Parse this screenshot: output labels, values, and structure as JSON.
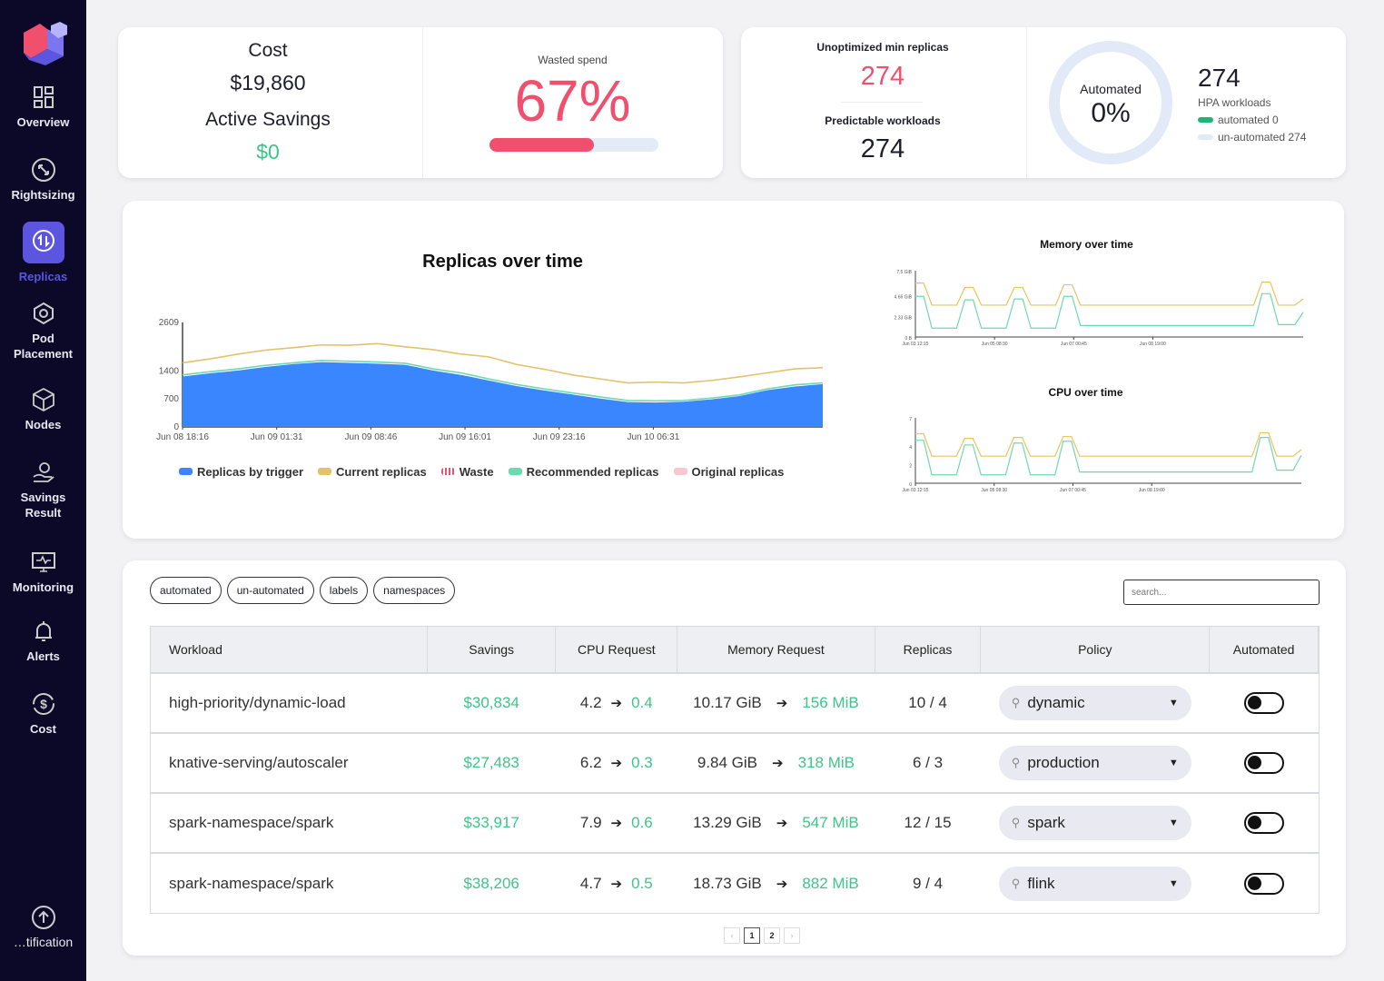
{
  "sidebar": {
    "items": [
      {
        "label": "Overview",
        "icon": "grid-icon"
      },
      {
        "label": "Rightsizing",
        "icon": "resize-icon"
      },
      {
        "label": "Replicas",
        "icon": "replicas-icon",
        "active": true
      },
      {
        "label": "Pod Placement",
        "icon": "pod-icon"
      },
      {
        "label": "Nodes",
        "icon": "cube-icon"
      },
      {
        "label": "Savings Result",
        "icon": "savings-icon"
      },
      {
        "label": "Monitoring",
        "icon": "monitor-icon"
      },
      {
        "label": "Alerts",
        "icon": "bell-icon"
      },
      {
        "label": "Cost",
        "icon": "dollar-icon"
      }
    ],
    "bottom": {
      "label": "…tification",
      "icon": "arrow-up-circle-icon"
    }
  },
  "summary": {
    "cost_label": "Cost",
    "cost_value": "$19,860",
    "savings_label": "Active Savings",
    "savings_value": "$0",
    "wasted_label": "Wasted spend",
    "wasted_value": "67%",
    "wasted_fraction": 0.67,
    "unopt_label": "Unoptimized min replicas",
    "unopt_value": "274",
    "predictable_label": "Predictable workloads",
    "predictable_value": "274",
    "automated_label": "Automated",
    "automated_value": "0%",
    "automated_fraction": 0,
    "hpa_value": "274",
    "hpa_label": "HPA workloads",
    "automated_legend": "automated 0",
    "unautomated_legend": "un-automated 274"
  },
  "colors": {
    "accent": "#5b55e0",
    "pink": "#f0506e",
    "green": "#3fc48a",
    "blue": "#3a86ff",
    "gold": "#e2c26a",
    "teal": "#6ed9b0"
  },
  "chart_data": [
    {
      "type": "area",
      "title": "Replicas over time",
      "ylim": [
        0,
        2609
      ],
      "yticks": [
        "0",
        "700",
        "1400",
        "2609"
      ],
      "ytick_values": [
        0,
        700,
        1400,
        2609
      ],
      "xticks": [
        "Jun 08 18:16",
        "Jun 09 01:31",
        "Jun 09 08:46",
        "Jun 09 16:01",
        "Jun 09 23:16",
        "Jun 10 06:31"
      ],
      "legend": [
        "Replicas by trigger",
        "Current replicas",
        "Waste",
        "Recommended replicas",
        "Original replicas"
      ],
      "series": [
        {
          "name": "Current replicas",
          "values": [
            1600,
            1700,
            1820,
            1920,
            1980,
            2050,
            2040,
            2080,
            2000,
            1930,
            1820,
            1750,
            1560,
            1440,
            1300,
            1200,
            1100,
            1120,
            1100,
            1160,
            1250,
            1350,
            1450,
            1480
          ]
        },
        {
          "name": "Recommended replicas",
          "values": [
            1300,
            1380,
            1450,
            1540,
            1600,
            1660,
            1640,
            1620,
            1590,
            1450,
            1350,
            1200,
            1060,
            950,
            850,
            750,
            660,
            650,
            660,
            720,
            800,
            950,
            1050,
            1100
          ]
        },
        {
          "name": "Replicas by trigger",
          "values": [
            1260,
            1340,
            1410,
            1500,
            1570,
            1620,
            1600,
            1580,
            1550,
            1410,
            1300,
            1160,
            1020,
            910,
            810,
            710,
            620,
            610,
            630,
            690,
            770,
            920,
            1010,
            1070
          ]
        }
      ]
    },
    {
      "type": "line",
      "title": "Memory over time",
      "ylim": [
        0,
        7.5
      ],
      "yticks": [
        "0 B",
        "2.33 GiB",
        "4.66 GiB",
        "7.5 GiB"
      ],
      "ytick_values": [
        0,
        2.33,
        4.66,
        7.5
      ],
      "xticks": [
        "Jun 03 12:15",
        "Jun 05 08:30",
        "Jun 07 00:45",
        "Jun 08 19:00"
      ],
      "series": [
        {
          "name": "current",
          "values": [
            6.1,
            6.1,
            3.6,
            3.6,
            3.6,
            3.6,
            5.6,
            5.6,
            3.6,
            3.6,
            3.6,
            3.6,
            5.6,
            5.6,
            3.6,
            3.6,
            3.6,
            3.6,
            5.9,
            5.9,
            3.6,
            3.6,
            3.6,
            3.6,
            3.6,
            3.6,
            3.6,
            3.6,
            3.6,
            3.6,
            3.6,
            3.6,
            3.6,
            3.6,
            3.6,
            3.6,
            3.6,
            3.6,
            3.6,
            3.6,
            3.6,
            3.6,
            6.2,
            6.2,
            3.6,
            3.6,
            3.6,
            4.3
          ]
        },
        {
          "name": "recommended",
          "values": [
            4.6,
            4.6,
            1.0,
            1.0,
            1.0,
            1.0,
            4.2,
            4.2,
            1.0,
            1.0,
            1.0,
            1.0,
            4.3,
            4.3,
            1.0,
            1.0,
            1.0,
            1.0,
            4.6,
            4.6,
            1.3,
            1.3,
            1.3,
            1.3,
            1.3,
            1.3,
            1.3,
            1.3,
            1.3,
            1.3,
            1.3,
            1.3,
            1.3,
            1.3,
            1.3,
            1.3,
            1.3,
            1.3,
            1.3,
            1.3,
            1.3,
            1.3,
            4.9,
            4.9,
            1.4,
            1.4,
            1.4,
            2.8
          ]
        }
      ]
    },
    {
      "type": "line",
      "title": "CPU over time",
      "ylim": [
        0,
        7
      ],
      "yticks": [
        "0",
        "2",
        "4",
        "7"
      ],
      "ytick_values": [
        0,
        2,
        4,
        7
      ],
      "xticks": [
        "Jun 03 12:15",
        "Jun 05 08:30",
        "Jun 07 00:45",
        "Jun 08 19:00"
      ],
      "series": [
        {
          "name": "current",
          "values": [
            5.3,
            5.3,
            2.9,
            2.9,
            2.9,
            2.9,
            4.8,
            4.8,
            2.9,
            2.9,
            2.9,
            2.9,
            4.9,
            4.9,
            2.9,
            2.9,
            2.9,
            2.9,
            5.0,
            5.0,
            2.9,
            2.9,
            2.9,
            2.9,
            2.9,
            2.9,
            2.9,
            2.9,
            2.9,
            2.9,
            2.9,
            2.9,
            2.9,
            2.9,
            2.9,
            2.9,
            2.9,
            2.9,
            2.9,
            2.9,
            2.9,
            2.9,
            5.4,
            5.4,
            2.9,
            2.9,
            2.9,
            3.6
          ]
        },
        {
          "name": "recommended",
          "values": [
            4.6,
            4.6,
            0.9,
            0.9,
            0.9,
            0.9,
            4.1,
            4.1,
            0.9,
            0.9,
            0.9,
            0.9,
            4.3,
            4.3,
            0.9,
            0.9,
            0.9,
            0.9,
            4.5,
            4.5,
            1.2,
            1.2,
            1.2,
            1.2,
            1.2,
            1.2,
            1.2,
            1.2,
            1.2,
            1.2,
            1.2,
            1.2,
            1.2,
            1.2,
            1.2,
            1.2,
            1.2,
            1.2,
            1.2,
            1.2,
            1.2,
            1.2,
            4.9,
            4.9,
            1.4,
            1.4,
            1.4,
            3.0
          ]
        }
      ]
    }
  ],
  "filters": [
    "automated",
    "un-automated",
    "labels",
    "namespaces"
  ],
  "search": {
    "placeholder": "search..."
  },
  "table": {
    "headers": [
      "Workload",
      "Savings",
      "CPU Request",
      "Memory Request",
      "Replicas",
      "Policy",
      "Automated"
    ],
    "rows": [
      {
        "workload": "high-priority/dynamic-load",
        "savings": "$30,834",
        "cpu_from": "4.2",
        "cpu_to": "0.4",
        "mem_from": "10.17 GiB",
        "mem_to": "156 MiB",
        "rep_from": "10",
        "rep_to": "4",
        "policy": "dynamic",
        "automated": false
      },
      {
        "workload": "knative-serving/autoscaler",
        "savings": "$27,483",
        "cpu_from": "6.2",
        "cpu_to": "0.3",
        "mem_from": "9.84 GiB",
        "mem_to": "318 MiB",
        "rep_from": "6",
        "rep_to": "3",
        "policy": "production",
        "automated": false
      },
      {
        "workload": "spark-namespace/spark",
        "savings": "$33,917",
        "cpu_from": "7.9",
        "cpu_to": "0.6",
        "mem_from": "13.29 GiB",
        "mem_to": "547 MiB",
        "rep_from": "12",
        "rep_to": "15",
        "policy": "spark",
        "automated": false
      },
      {
        "workload": "spark-namespace/spark",
        "savings": "$38,206",
        "cpu_from": "4.7",
        "cpu_to": "0.5",
        "mem_from": "18.73 GiB",
        "mem_to": "882 MiB",
        "rep_from": "9",
        "rep_to": "4",
        "policy": "flink",
        "automated": false
      }
    ]
  },
  "pagination": {
    "pages": [
      "1",
      "2"
    ],
    "current": "1"
  }
}
